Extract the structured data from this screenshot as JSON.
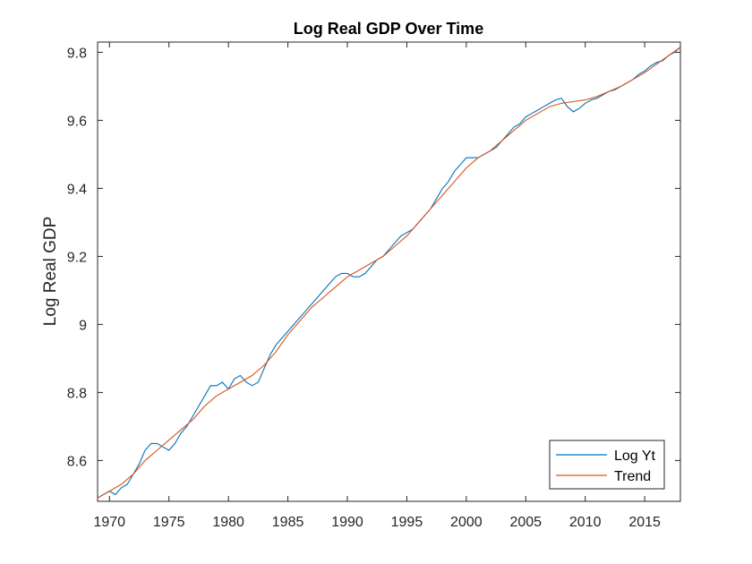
{
  "chart_data": {
    "type": "line",
    "title": "Log Real GDP Over Time",
    "xlabel": "",
    "ylabel": "Log Real GDP",
    "xlim": [
      1969,
      2018
    ],
    "ylim": [
      8.48,
      9.83
    ],
    "x_ticks": [
      1970,
      1975,
      1980,
      1985,
      1990,
      1995,
      2000,
      2005,
      2010,
      2015
    ],
    "y_ticks": [
      8.6,
      8.8,
      9,
      9.2,
      9.4,
      9.6,
      9.8
    ],
    "y_tick_labels": [
      "8.6",
      "8.8",
      "9",
      "9.2",
      "9.4",
      "9.6",
      "9.8"
    ],
    "grid": false,
    "legend_position": "bottom-right",
    "series": [
      {
        "name": "Log Yt",
        "color": "#0072BD",
        "x": [
          1969.0,
          1969.5,
          1970.0,
          1970.5,
          1971.0,
          1971.5,
          1972.0,
          1972.5,
          1973.0,
          1973.5,
          1974.0,
          1974.5,
          1975.0,
          1975.5,
          1976.0,
          1976.5,
          1977.0,
          1977.5,
          1978.0,
          1978.5,
          1979.0,
          1979.5,
          1980.0,
          1980.5,
          1981.0,
          1981.5,
          1982.0,
          1982.5,
          1983.0,
          1983.5,
          1984.0,
          1984.5,
          1985.0,
          1985.5,
          1986.0,
          1986.5,
          1987.0,
          1987.5,
          1988.0,
          1988.5,
          1989.0,
          1989.5,
          1990.0,
          1990.5,
          1991.0,
          1991.5,
          1992.0,
          1992.5,
          1993.0,
          1993.5,
          1994.0,
          1994.5,
          1995.0,
          1995.5,
          1996.0,
          1996.5,
          1997.0,
          1997.5,
          1998.0,
          1998.5,
          1999.0,
          1999.5,
          2000.0,
          2000.5,
          2001.0,
          2001.5,
          2002.0,
          2002.5,
          2003.0,
          2003.5,
          2004.0,
          2004.5,
          2005.0,
          2005.5,
          2006.0,
          2006.5,
          2007.0,
          2007.5,
          2008.0,
          2008.5,
          2009.0,
          2009.5,
          2010.0,
          2010.5,
          2011.0,
          2011.5,
          2012.0,
          2012.5,
          2013.0,
          2013.5,
          2014.0,
          2014.5,
          2015.0,
          2015.5,
          2016.0,
          2016.5,
          2017.0,
          2017.5,
          2018.0
        ],
        "y": [
          8.49,
          8.5,
          8.51,
          8.5,
          8.52,
          8.53,
          8.56,
          8.59,
          8.63,
          8.65,
          8.65,
          8.64,
          8.63,
          8.65,
          8.68,
          8.7,
          8.73,
          8.76,
          8.79,
          8.82,
          8.82,
          8.83,
          8.81,
          8.84,
          8.85,
          8.83,
          8.82,
          8.83,
          8.87,
          8.91,
          8.94,
          8.96,
          8.98,
          9.0,
          9.02,
          9.04,
          9.06,
          9.08,
          9.1,
          9.12,
          9.14,
          9.15,
          9.15,
          9.14,
          9.14,
          9.15,
          9.17,
          9.19,
          9.2,
          9.22,
          9.24,
          9.26,
          9.27,
          9.28,
          9.3,
          9.32,
          9.34,
          9.37,
          9.4,
          9.42,
          9.45,
          9.47,
          9.49,
          9.49,
          9.49,
          9.5,
          9.51,
          9.52,
          9.54,
          9.56,
          9.58,
          9.59,
          9.61,
          9.62,
          9.63,
          9.64,
          9.65,
          9.66,
          9.665,
          9.64,
          9.625,
          9.635,
          9.65,
          9.66,
          9.665,
          9.675,
          9.685,
          9.69,
          9.7,
          9.71,
          9.72,
          9.735,
          9.745,
          9.76,
          9.77,
          9.775,
          9.79,
          9.8,
          9.815
        ]
      },
      {
        "name": "Trend",
        "color": "#D95319",
        "x": [
          1969.0,
          1970.0,
          1971.0,
          1972.0,
          1973.0,
          1974.0,
          1975.0,
          1976.0,
          1977.0,
          1978.0,
          1979.0,
          1980.0,
          1981.0,
          1982.0,
          1983.0,
          1984.0,
          1985.0,
          1986.0,
          1987.0,
          1988.0,
          1989.0,
          1990.0,
          1991.0,
          1992.0,
          1993.0,
          1994.0,
          1995.0,
          1996.0,
          1997.0,
          1998.0,
          1999.0,
          2000.0,
          2001.0,
          2002.0,
          2003.0,
          2004.0,
          2005.0,
          2006.0,
          2007.0,
          2008.0,
          2009.0,
          2010.0,
          2011.0,
          2012.0,
          2013.0,
          2014.0,
          2015.0,
          2016.0,
          2017.0,
          2018.0
        ],
        "y": [
          8.49,
          8.51,
          8.53,
          8.56,
          8.6,
          8.63,
          8.66,
          8.69,
          8.72,
          8.76,
          8.79,
          8.81,
          8.83,
          8.85,
          8.88,
          8.92,
          8.97,
          9.01,
          9.05,
          9.08,
          9.11,
          9.14,
          9.16,
          9.18,
          9.2,
          9.23,
          9.26,
          9.3,
          9.34,
          9.38,
          9.42,
          9.46,
          9.49,
          9.51,
          9.54,
          9.57,
          9.6,
          9.62,
          9.64,
          9.65,
          9.655,
          9.66,
          9.67,
          9.685,
          9.7,
          9.72,
          9.74,
          9.765,
          9.79,
          9.815
        ]
      }
    ]
  }
}
